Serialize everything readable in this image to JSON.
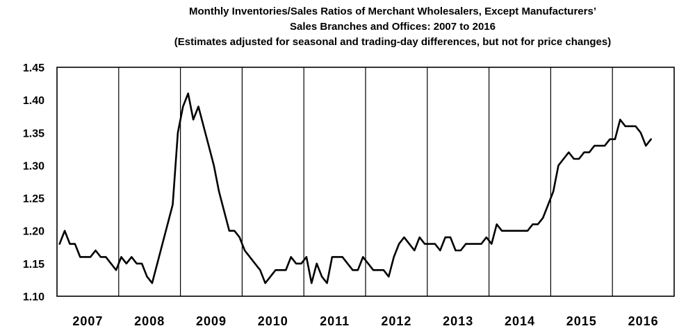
{
  "chart_data": {
    "type": "line",
    "title": [
      "Monthly Inventories/Sales Ratios of Merchant Wholesalers, Except Manufacturers’",
      "Sales Branches and Offices: 2007 to 2016",
      "(Estimates adjusted for seasonal and trading-day differences, but not for price changes)"
    ],
    "xlabel": "",
    "ylabel": "",
    "ylim": [
      1.1,
      1.45
    ],
    "yticks": [
      "1.45",
      "1.40",
      "1.35",
      "1.30",
      "1.25",
      "1.20",
      "1.15",
      "1.10"
    ],
    "ytick_values": [
      1.45,
      1.4,
      1.35,
      1.3,
      1.25,
      1.2,
      1.15,
      1.1
    ],
    "years": [
      "2007",
      "2008",
      "2009",
      "2010",
      "2011",
      "2012",
      "2013",
      "2014",
      "2015",
      "2016"
    ],
    "grid": "vertical year dividers",
    "legend": "none",
    "series": [
      {
        "color": "#000000",
        "start": "2007-01",
        "values": [
          1.18,
          1.2,
          1.18,
          1.18,
          1.16,
          1.16,
          1.16,
          1.17,
          1.16,
          1.16,
          1.15,
          1.14,
          1.16,
          1.15,
          1.16,
          1.15,
          1.15,
          1.13,
          1.12,
          1.15,
          1.18,
          1.21,
          1.24,
          1.35,
          1.39,
          1.41,
          1.37,
          1.39,
          1.36,
          1.33,
          1.3,
          1.26,
          1.23,
          1.2,
          1.2,
          1.19,
          1.17,
          1.16,
          1.15,
          1.14,
          1.12,
          1.13,
          1.14,
          1.14,
          1.14,
          1.16,
          1.15,
          1.15,
          1.16,
          1.12,
          1.15,
          1.13,
          1.12,
          1.16,
          1.16,
          1.16,
          1.15,
          1.14,
          1.14,
          1.16,
          1.15,
          1.14,
          1.14,
          1.14,
          1.13,
          1.16,
          1.18,
          1.19,
          1.18,
          1.17,
          1.19,
          1.18,
          1.18,
          1.18,
          1.17,
          1.19,
          1.19,
          1.17,
          1.17,
          1.18,
          1.18,
          1.18,
          1.18,
          1.19,
          1.18,
          1.21,
          1.2,
          1.2,
          1.2,
          1.2,
          1.2,
          1.2,
          1.21,
          1.21,
          1.22,
          1.24,
          1.26,
          1.3,
          1.31,
          1.32,
          1.31,
          1.31,
          1.32,
          1.32,
          1.33,
          1.33,
          1.33,
          1.34,
          1.34,
          1.37,
          1.36,
          1.36,
          1.36,
          1.35,
          1.33,
          1.34
        ]
      }
    ]
  }
}
